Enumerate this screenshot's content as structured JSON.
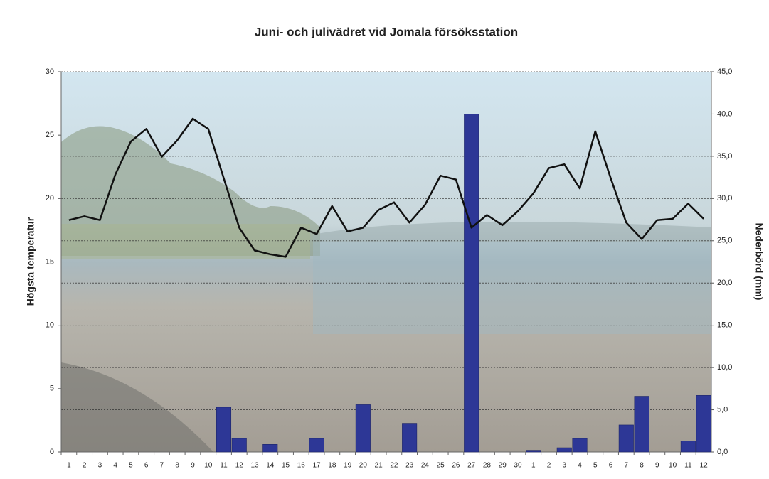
{
  "chart_data": {
    "type": "combo",
    "title": "Juni- och julivädret vid Jomala försöksstation",
    "y_label": "Högsta temperatur",
    "y2_label": "Nederbörd (mm)",
    "categories": [
      "1",
      "2",
      "3",
      "4",
      "5",
      "6",
      "7",
      "8",
      "9",
      "10",
      "11",
      "12",
      "13",
      "14",
      "15",
      "16",
      "17",
      "18",
      "19",
      "20",
      "21",
      "22",
      "23",
      "24",
      "25",
      "26",
      "27",
      "28",
      "29",
      "30",
      "1",
      "2",
      "3",
      "4",
      "5",
      "6",
      "7",
      "8",
      "9",
      "10",
      "11",
      "12"
    ],
    "series": [
      {
        "type": "bar",
        "axis": "y2",
        "color": "#2d3796",
        "values": [
          0,
          0,
          0,
          0,
          0,
          0,
          0,
          0,
          0,
          0,
          5.3,
          1.6,
          0,
          0.9,
          0,
          0,
          1.6,
          0,
          0,
          5.6,
          0,
          0,
          3.4,
          0,
          0,
          0,
          40.0,
          0,
          0,
          0,
          0.2,
          0,
          0.5,
          1.6,
          0,
          0,
          3.2,
          6.6,
          0,
          0,
          1.3,
          6.7
        ]
      },
      {
        "type": "line",
        "axis": "y",
        "color": "#111111",
        "values": [
          18.3,
          18.6,
          18.3,
          21.9,
          24.5,
          25.5,
          23.3,
          24.6,
          26.3,
          25.5,
          21.6,
          17.7,
          15.9,
          15.6,
          15.4,
          17.7,
          17.2,
          19.4,
          17.4,
          17.7,
          19.1,
          19.7,
          18.1,
          19.5,
          21.8,
          21.5,
          17.7,
          18.7,
          17.9,
          19.0,
          20.4,
          22.4,
          22.7,
          20.8,
          25.3,
          21.6,
          18.1,
          16.8,
          18.3,
          18.4,
          19.6,
          18.4
        ]
      }
    ],
    "ylim": [
      0,
      30
    ],
    "yticks": [
      0,
      5,
      10,
      15,
      20,
      25,
      30
    ],
    "y2lim": [
      0,
      45
    ],
    "y2ticks": [
      {
        "value": 0,
        "label": "0,0"
      },
      {
        "value": 5,
        "label": "5,0"
      },
      {
        "value": 10,
        "label": "10,0"
      },
      {
        "value": 15,
        "label": "15,0"
      },
      {
        "value": 20,
        "label": "20,0"
      },
      {
        "value": 25,
        "label": "25,0"
      },
      {
        "value": 30,
        "label": "30,0"
      },
      {
        "value": 35,
        "label": "35,0"
      },
      {
        "value": 40,
        "label": "40,0"
      },
      {
        "value": 45,
        "label": "45,0"
      }
    ],
    "grid": true
  }
}
